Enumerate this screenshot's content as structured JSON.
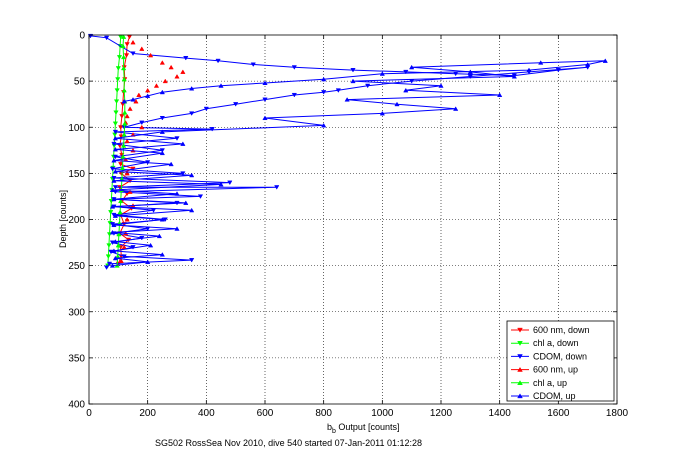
{
  "chart_data": {
    "type": "line",
    "title": "",
    "xlabel_main": "b",
    "xlabel_sub": "b",
    "xlabel_rest": " Output [counts]",
    "ylabel": "Depth [counts]",
    "footer": "SG502 RossSea Nov 2010, dive 540 started 07-Jan-2011 01:12:28",
    "xlim": [
      0,
      1800
    ],
    "ylim": [
      0,
      400
    ],
    "y_reversed": true,
    "grid": true,
    "legend_position": "bottom-right",
    "xticks": [
      "0",
      "200",
      "400",
      "600",
      "800",
      "1000",
      "1200",
      "1400",
      "1600",
      "1800"
    ],
    "yticks": [
      "0",
      "50",
      "100",
      "150",
      "200",
      "250",
      "300",
      "350",
      "400"
    ],
    "colors": {
      "red": "#ff0000",
      "green": "#00ff00",
      "blue": "#0000ff"
    },
    "series": [
      {
        "name": "600 nm, down",
        "color": "red",
        "marker": "triangle-down",
        "line": true,
        "points": [
          [
            138,
            2
          ],
          [
            130,
            10
          ],
          [
            128,
            22
          ],
          [
            120,
            35
          ],
          [
            122,
            48
          ],
          [
            118,
            62
          ],
          [
            115,
            75
          ],
          [
            112,
            88
          ],
          [
            108,
            100
          ],
          [
            110,
            110
          ],
          [
            105,
            120
          ],
          [
            112,
            130
          ],
          [
            108,
            140
          ],
          [
            150,
            145
          ],
          [
            110,
            150
          ],
          [
            140,
            158
          ],
          [
            105,
            165
          ],
          [
            130,
            172
          ],
          [
            112,
            180
          ],
          [
            145,
            188
          ],
          [
            108,
            195
          ],
          [
            120,
            205
          ],
          [
            105,
            215
          ],
          [
            135,
            222
          ],
          [
            108,
            230
          ],
          [
            110,
            240
          ],
          [
            100,
            248
          ]
        ]
      },
      {
        "name": "chl a, down",
        "color": "green",
        "marker": "triangle-down",
        "line": true,
        "points": [
          [
            108,
            2
          ],
          [
            106,
            12
          ],
          [
            104,
            24
          ],
          [
            100,
            36
          ],
          [
            98,
            48
          ],
          [
            96,
            60
          ],
          [
            94,
            72
          ],
          [
            92,
            84
          ],
          [
            90,
            96
          ],
          [
            88,
            108
          ],
          [
            86,
            120
          ],
          [
            84,
            132
          ],
          [
            82,
            144
          ],
          [
            80,
            156
          ],
          [
            78,
            168
          ],
          [
            76,
            180
          ],
          [
            74,
            192
          ],
          [
            72,
            204
          ],
          [
            70,
            216
          ],
          [
            68,
            228
          ],
          [
            66,
            240
          ],
          [
            64,
            250
          ]
        ]
      },
      {
        "name": "CDOM, down",
        "color": "blue",
        "marker": "triangle-down",
        "line": true,
        "points": [
          [
            5,
            1
          ],
          [
            60,
            3
          ],
          [
            150,
            20
          ],
          [
            330,
            25
          ],
          [
            440,
            28
          ],
          [
            560,
            32
          ],
          [
            700,
            35
          ],
          [
            900,
            38
          ],
          [
            1080,
            40
          ],
          [
            1250,
            42
          ],
          [
            1450,
            44
          ],
          [
            1600,
            38
          ],
          [
            1700,
            35
          ],
          [
            1500,
            40
          ],
          [
            1300,
            45
          ],
          [
            1100,
            50
          ],
          [
            950,
            55
          ],
          [
            850,
            60
          ],
          [
            800,
            62
          ],
          [
            700,
            65
          ],
          [
            600,
            70
          ],
          [
            500,
            75
          ],
          [
            400,
            80
          ],
          [
            350,
            85
          ],
          [
            250,
            90
          ],
          [
            180,
            95
          ],
          [
            120,
            100
          ],
          [
            420,
            102
          ],
          [
            90,
            105
          ],
          [
            300,
            112
          ],
          [
            85,
            118
          ],
          [
            250,
            125
          ],
          [
            90,
            132
          ],
          [
            200,
            138
          ],
          [
            80,
            145
          ],
          [
            320,
            150
          ],
          [
            85,
            155
          ],
          [
            480,
            160
          ],
          [
            90,
            165
          ],
          [
            640,
            165
          ],
          [
            90,
            170
          ],
          [
            380,
            175
          ],
          [
            85,
            178
          ],
          [
            300,
            182
          ],
          [
            85,
            186
          ],
          [
            220,
            190
          ],
          [
            85,
            195
          ],
          [
            260,
            200
          ],
          [
            80,
            205
          ],
          [
            200,
            210
          ],
          [
            85,
            215
          ],
          [
            180,
            220
          ],
          [
            80,
            225
          ],
          [
            150,
            230
          ],
          [
            75,
            235
          ],
          [
            120,
            240
          ],
          [
            350,
            244
          ],
          [
            70,
            248
          ],
          [
            60,
            252
          ]
        ]
      },
      {
        "name": "600 nm, up",
        "color": "red",
        "marker": "triangle-up",
        "line": false,
        "points": [
          [
            150,
            8
          ],
          [
            180,
            15
          ],
          [
            210,
            22
          ],
          [
            250,
            30
          ],
          [
            280,
            35
          ],
          [
            320,
            40
          ],
          [
            300,
            45
          ],
          [
            260,
            50
          ],
          [
            230,
            55
          ],
          [
            200,
            60
          ],
          [
            170,
            65
          ],
          [
            160,
            72
          ],
          [
            140,
            80
          ],
          [
            130,
            88
          ],
          [
            125,
            95
          ],
          [
            180,
            100
          ],
          [
            150,
            108
          ],
          [
            130,
            115
          ],
          [
            150,
            125
          ],
          [
            125,
            135
          ],
          [
            130,
            150
          ],
          [
            140,
            170
          ],
          [
            150,
            185
          ],
          [
            130,
            200
          ],
          [
            125,
            215
          ],
          [
            120,
            230
          ],
          [
            110,
            245
          ]
        ]
      },
      {
        "name": "chl a, up",
        "color": "green",
        "marker": "triangle-up",
        "line": true,
        "points": [
          [
            96,
            250
          ],
          [
            98,
            240
          ],
          [
            100,
            228
          ],
          [
            102,
            216
          ],
          [
            104,
            204
          ],
          [
            106,
            192
          ],
          [
            108,
            180
          ],
          [
            110,
            168
          ],
          [
            112,
            156
          ],
          [
            114,
            144
          ],
          [
            116,
            132
          ],
          [
            118,
            120
          ],
          [
            120,
            108
          ],
          [
            122,
            96
          ],
          [
            122,
            84
          ],
          [
            122,
            72
          ],
          [
            120,
            60
          ],
          [
            120,
            48
          ],
          [
            118,
            36
          ],
          [
            118,
            24
          ],
          [
            116,
            12
          ],
          [
            118,
            2
          ]
        ]
      },
      {
        "name": "CDOM, up",
        "color": "blue",
        "marker": "triangle-up",
        "line": true,
        "points": [
          [
            80,
            250
          ],
          [
            200,
            246
          ],
          [
            90,
            242
          ],
          [
            250,
            238
          ],
          [
            85,
            234
          ],
          [
            210,
            228
          ],
          [
            90,
            224
          ],
          [
            240,
            218
          ],
          [
            80,
            214
          ],
          [
            300,
            210
          ],
          [
            85,
            206
          ],
          [
            250,
            200
          ],
          [
            90,
            196
          ],
          [
            350,
            190
          ],
          [
            80,
            186
          ],
          [
            330,
            182
          ],
          [
            85,
            178
          ],
          [
            300,
            172
          ],
          [
            80,
            168
          ],
          [
            450,
            162
          ],
          [
            85,
            158
          ],
          [
            350,
            152
          ],
          [
            90,
            148
          ],
          [
            280,
            140
          ],
          [
            85,
            136
          ],
          [
            250,
            128
          ],
          [
            90,
            124
          ],
          [
            320,
            118
          ],
          [
            90,
            112
          ],
          [
            250,
            105
          ],
          [
            800,
            98
          ],
          [
            600,
            90
          ],
          [
            1000,
            85
          ],
          [
            1250,
            80
          ],
          [
            1050,
            75
          ],
          [
            880,
            70
          ],
          [
            1400,
            65
          ],
          [
            1080,
            60
          ],
          [
            1200,
            55
          ],
          [
            900,
            50
          ],
          [
            1450,
            45
          ],
          [
            1300,
            40
          ],
          [
            1100,
            35
          ],
          [
            1540,
            30
          ],
          [
            1760,
            28
          ],
          [
            1700,
            32
          ],
          [
            1500,
            38
          ],
          [
            1000,
            42
          ],
          [
            800,
            48
          ],
          [
            600,
            52
          ],
          [
            450,
            55
          ],
          [
            350,
            58
          ],
          [
            250,
            62
          ],
          [
            200,
            66
          ],
          [
            150,
            70
          ],
          [
            120,
            72
          ]
        ]
      }
    ]
  }
}
